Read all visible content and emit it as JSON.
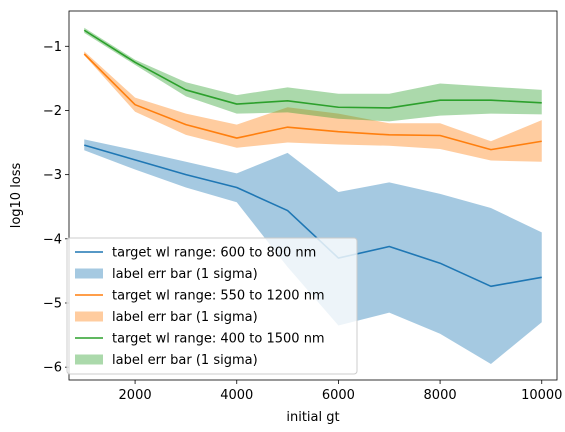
{
  "chart_data": {
    "type": "line",
    "xlabel": "initial gt",
    "ylabel": "log10 loss",
    "xlim": [
      700,
      10300
    ],
    "ylim": [
      -6.2,
      -0.45
    ],
    "xticks": [
      2000,
      4000,
      6000,
      8000,
      10000
    ],
    "yticks": [
      -6,
      -5,
      -4,
      -3,
      -2,
      -1
    ],
    "x": [
      1000,
      2000,
      3000,
      4000,
      5000,
      6000,
      7000,
      8000,
      9000,
      10000
    ],
    "legend_position": "lower-left",
    "series": [
      {
        "name": "target wl range:  600 to  800 nm",
        "band_name": "label err bar (1 sigma)",
        "color": "#1f77b4",
        "band_color": "#1f77b4",
        "values": [
          -2.54,
          -2.77,
          -3.0,
          -3.2,
          -3.56,
          -4.3,
          -4.12,
          -4.38,
          -4.74,
          -4.6
        ],
        "upper": [
          -2.45,
          -2.62,
          -2.8,
          -2.98,
          -2.66,
          -3.27,
          -3.12,
          -3.3,
          -3.52,
          -3.9
        ],
        "lower": [
          -2.62,
          -2.92,
          -3.2,
          -3.43,
          -4.44,
          -5.35,
          -5.15,
          -5.48,
          -5.95,
          -5.3
        ]
      },
      {
        "name": "target wl range:  550 to  1200 nm",
        "band_name": "label err bar (1 sigma)",
        "color": "#ff7f0e",
        "band_color": "#ff7f0e",
        "values": [
          -1.12,
          -1.91,
          -2.22,
          -2.43,
          -2.26,
          -2.33,
          -2.38,
          -2.39,
          -2.61,
          -2.48
        ],
        "upper": [
          -1.08,
          -1.8,
          -2.05,
          -2.22,
          -1.95,
          -2.05,
          -2.2,
          -2.2,
          -2.48,
          -2.15
        ],
        "lower": [
          -1.14,
          -2.02,
          -2.38,
          -2.58,
          -2.5,
          -2.53,
          -2.55,
          -2.6,
          -2.78,
          -2.8
        ]
      },
      {
        "name": "target wl range:  400 to  1500 nm",
        "band_name": "label err bar (1 sigma)",
        "color": "#2ca02c",
        "band_color": "#2ca02c",
        "values": [
          -0.75,
          -1.25,
          -1.68,
          -1.9,
          -1.85,
          -1.95,
          -1.96,
          -1.84,
          -1.84,
          -1.88
        ],
        "upper": [
          -0.71,
          -1.21,
          -1.56,
          -1.76,
          -1.64,
          -1.74,
          -1.74,
          -1.58,
          -1.63,
          -1.68
        ],
        "lower": [
          -0.79,
          -1.29,
          -1.78,
          -2.05,
          -2.03,
          -2.13,
          -2.17,
          -2.08,
          -2.05,
          -2.06
        ]
      }
    ]
  }
}
